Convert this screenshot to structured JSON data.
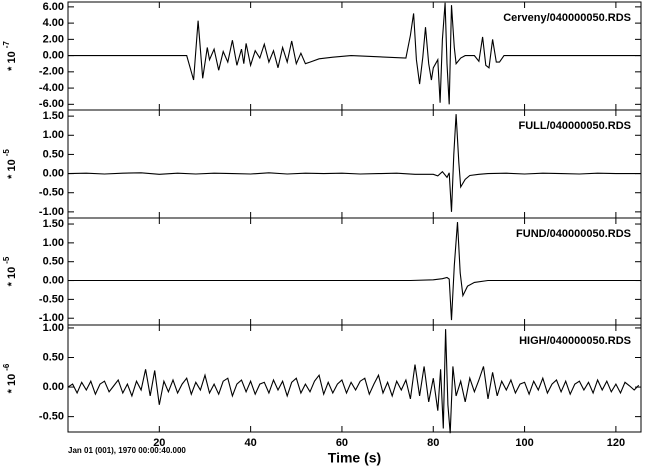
{
  "chart_data": [
    {
      "type": "line",
      "title": "Cerveny/040000050.RDS",
      "ylabel": "* 10",
      "ylabel_exponent": "-7",
      "color": "#000000",
      "xlim": [
        0,
        125.5
      ],
      "ylim": [
        -6.7,
        6.6
      ],
      "yticks": [
        {
          "value": 6,
          "label": "6.00"
        },
        {
          "value": 4,
          "label": "4.00"
        },
        {
          "value": 2,
          "label": "2.00"
        },
        {
          "value": 0,
          "label": "0.00"
        },
        {
          "value": -2,
          "label": "-2.00"
        },
        {
          "value": -4,
          "label": "-4.00"
        },
        {
          "value": -6,
          "label": "-6.00"
        }
      ],
      "x": [
        0,
        26,
        27.5,
        28.5,
        29.5,
        30.5,
        31,
        32,
        33,
        34,
        35,
        36,
        37,
        38,
        38.5,
        39,
        40,
        41,
        42,
        43,
        44,
        45,
        46,
        47,
        48,
        49,
        50,
        51,
        52,
        53,
        55,
        58,
        62,
        74,
        75,
        75.7,
        76.3,
        77,
        77.7,
        78.3,
        79,
        79.6,
        80,
        81,
        81.5,
        82,
        82.6,
        83,
        83.5,
        84,
        84.6,
        85,
        86,
        87,
        89,
        90,
        90.8,
        91.5,
        92.2,
        93,
        93.8,
        94.5,
        95.5,
        125.5
      ],
      "values": [
        0,
        0,
        -3.0,
        4.3,
        -2.8,
        1.0,
        -0.5,
        0.8,
        -1.8,
        0.5,
        -0.8,
        1.9,
        -1.2,
        0.8,
        -1.0,
        1.5,
        -1.2,
        0.6,
        -0.3,
        1.4,
        -0.8,
        0.6,
        -1.5,
        1.0,
        -0.8,
        1.8,
        -1.0,
        0.3,
        -1.0,
        -0.8,
        -0.4,
        -0.2,
        0,
        -0.3,
        2.5,
        5.2,
        -0.5,
        -3.5,
        -0.2,
        3.5,
        -1.0,
        -3.0,
        -1.5,
        -0.5,
        -5.8,
        2.0,
        6.5,
        -1.0,
        -6.0,
        6.2,
        1.0,
        -1.0,
        -0.3,
        0,
        0,
        -0.7,
        2.3,
        -1.2,
        -1.5,
        2.0,
        -0.8,
        -0.8,
        0,
        0
      ]
    },
    {
      "type": "line",
      "title": "FULL/040000050.RDS",
      "ylabel": "* 10",
      "ylabel_exponent": "-5",
      "color": "#000000",
      "xlim": [
        0,
        125.5
      ],
      "ylim": [
        -1.16,
        1.66
      ],
      "yticks": [
        {
          "value": 1.5,
          "label": "1.50"
        },
        {
          "value": 1,
          "label": "1.00"
        },
        {
          "value": 0.5,
          "label": "0.50"
        },
        {
          "value": 0,
          "label": "0.00"
        },
        {
          "value": -0.5,
          "label": "-0.50"
        },
        {
          "value": -1,
          "label": "-1.00"
        }
      ],
      "x": [
        0,
        4,
        8,
        12,
        16,
        20,
        24,
        28,
        32,
        36,
        40,
        44,
        48,
        52,
        56,
        60,
        64,
        68,
        72,
        76,
        80,
        81,
        82,
        83,
        83.5,
        84,
        84.5,
        85,
        85.6,
        86,
        87,
        88,
        90,
        92,
        96,
        100,
        104,
        108,
        112,
        116,
        120,
        125.5
      ],
      "values": [
        0,
        0.01,
        -0.01,
        0.01,
        0.02,
        -0.02,
        0.01,
        -0.01,
        0.01,
        0,
        -0.01,
        0.02,
        -0.01,
        0.01,
        0,
        0.01,
        -0.01,
        0,
        0.01,
        -0.02,
        -0.02,
        -0.06,
        0.05,
        -0.1,
        0.02,
        -1.0,
        0.5,
        1.55,
        0.3,
        -0.35,
        -0.15,
        -0.05,
        -0.02,
        0,
        0.01,
        -0.01,
        0.01,
        0,
        -0.01,
        0.01,
        0,
        0
      ]
    },
    {
      "type": "line",
      "title": "FUND/040000050.RDS",
      "ylabel": "* 10",
      "ylabel_exponent": "-5",
      "color": "#000000",
      "xlim": [
        0,
        125.5
      ],
      "ylim": [
        -1.18,
        1.66
      ],
      "yticks": [
        {
          "value": 1.5,
          "label": "1.50"
        },
        {
          "value": 1,
          "label": "1.00"
        },
        {
          "value": 0.5,
          "label": "0.50"
        },
        {
          "value": 0,
          "label": "0.00"
        },
        {
          "value": -0.5,
          "label": "-0.50"
        },
        {
          "value": -1,
          "label": "-1.00"
        }
      ],
      "x": [
        0,
        75,
        80,
        82,
        83,
        83.5,
        84,
        84.6,
        85.3,
        85.9,
        86.5,
        87.5,
        89,
        92,
        125.5
      ],
      "values": [
        0,
        0,
        0.02,
        0.05,
        0.08,
        0.04,
        -1.05,
        0.4,
        1.55,
        0.2,
        -0.4,
        -0.15,
        -0.05,
        0,
        0
      ]
    },
    {
      "type": "line",
      "title": "HIGH/040000050.RDS",
      "ylabel": "* 10",
      "ylabel_exponent": "-6",
      "color": "#000000",
      "xlim": [
        0,
        125.5
      ],
      "ylim": [
        -0.76,
        1.05
      ],
      "yticks": [
        {
          "value": 1,
          "label": "1.00"
        },
        {
          "value": 0.5,
          "label": "0.50"
        },
        {
          "value": 0,
          "label": "0.00"
        },
        {
          "value": -0.5,
          "label": "-0.50"
        }
      ],
      "xticks": [
        20,
        40,
        60,
        80,
        100,
        120
      ],
      "xlabel": "Time (s)",
      "annotation": "Jan 01 (001), 1970 00:00:40.000",
      "x": [
        0,
        1,
        2,
        3,
        4,
        5,
        6,
        7,
        8,
        9,
        10,
        11,
        12,
        13,
        14,
        15,
        16,
        17,
        18,
        19,
        20,
        21,
        22,
        23,
        24,
        25,
        26,
        27,
        28,
        29,
        30,
        31,
        32,
        33,
        34,
        35,
        36,
        37,
        38,
        39,
        40,
        41,
        42,
        43,
        44,
        45,
        46,
        47,
        48,
        49,
        50,
        51,
        52,
        53,
        54,
        55,
        56,
        57,
        58,
        59,
        60,
        61,
        62,
        63,
        64,
        65,
        66,
        67,
        68,
        69,
        70,
        71,
        72,
        73,
        74,
        75,
        76,
        77,
        78,
        79,
        80,
        81,
        81.6,
        82.2,
        82.7,
        83.2,
        83.7,
        84.3,
        85,
        86,
        87,
        88,
        89,
        90,
        91,
        92,
        93,
        94,
        95,
        96,
        97,
        98,
        99,
        100,
        101,
        102,
        103,
        104,
        105,
        106,
        107,
        108,
        109,
        110,
        111,
        112,
        113,
        114,
        115,
        116,
        117,
        118,
        119,
        120,
        121,
        122,
        123,
        124,
        125
      ],
      "values": [
        0,
        0.05,
        -0.1,
        0.08,
        -0.05,
        0.1,
        -0.12,
        0.05,
        0.1,
        -0.08,
        0.02,
        0.12,
        -0.1,
        0.05,
        -0.15,
        0.1,
        -0.05,
        0.3,
        -0.15,
        0.28,
        -0.3,
        0.1,
        -0.08,
        0.12,
        -0.1,
        0.05,
        0.15,
        -0.12,
        0.08,
        -0.05,
        0.2,
        -0.1,
        0.05,
        -0.12,
        0.1,
        0.15,
        -0.15,
        0.05,
        0.12,
        -0.08,
        0.1,
        -0.12,
        0.05,
        0.08,
        -0.1,
        0.12,
        -0.05,
        0.1,
        -0.15,
        0.08,
        0.15,
        -0.1,
        0.05,
        -0.08,
        0.1,
        0.2,
        -0.12,
        0.08,
        -0.1,
        0.05,
        0.12,
        -0.1,
        0.08,
        -0.05,
        0.1,
        0.15,
        -0.12,
        0.05,
        0.2,
        -0.1,
        0.08,
        -0.15,
        0.1,
        -0.05,
        0.12,
        -0.2,
        0.38,
        -0.15,
        0.35,
        -0.25,
        0.15,
        -0.4,
        0.3,
        -0.7,
        0.98,
        -0.3,
        -0.78,
        0.35,
        -0.15,
        0.1,
        -0.25,
        0.15,
        -0.08,
        0.12,
        0.35,
        -0.2,
        0.25,
        -0.15,
        0.1,
        -0.05,
        0.12,
        -0.1,
        0.05,
        0.08,
        -0.12,
        0.1,
        -0.05,
        0.15,
        -0.1,
        0.05,
        0.12,
        -0.08,
        0.1,
        -0.12,
        0.05,
        0.1,
        -0.05,
        0.08,
        -0.1,
        0.12,
        -0.05,
        0.1,
        -0.08,
        0.05,
        -0.1,
        0.08,
        0.02,
        -0.05,
        0.03
      ]
    }
  ]
}
